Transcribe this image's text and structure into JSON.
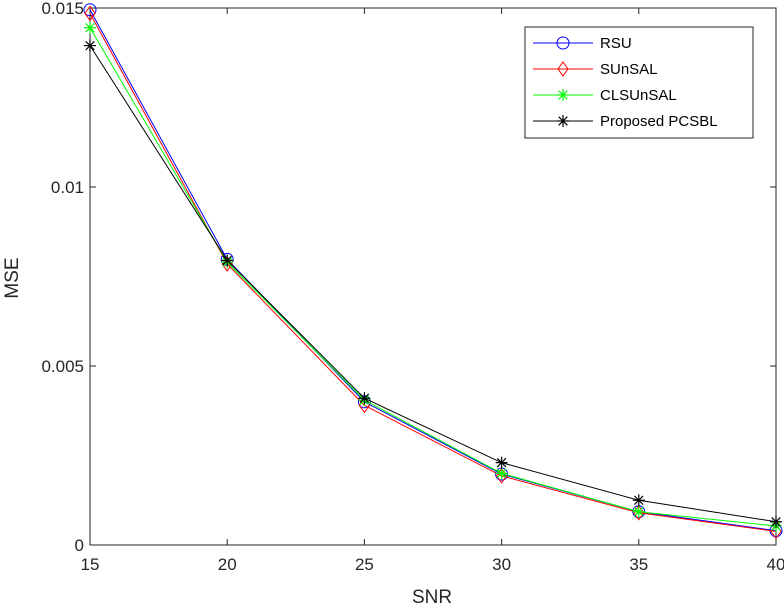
{
  "chart_data": {
    "type": "line",
    "title": "",
    "xlabel": "SNR",
    "ylabel": "MSE",
    "xlim": [
      15,
      40
    ],
    "ylim": [
      0,
      0.015
    ],
    "xticks": [
      15,
      20,
      25,
      30,
      35,
      40
    ],
    "xtick_labels": [
      "15",
      "20",
      "25",
      "30",
      "35",
      "40"
    ],
    "yticks": [
      0,
      0.005,
      0.01,
      0.015
    ],
    "ytick_labels": [
      "0",
      "0.005",
      "0.01",
      "0.015"
    ],
    "grid": false,
    "legend_position": "top-right",
    "x": [
      15,
      20,
      25,
      30,
      35,
      40
    ],
    "series": [
      {
        "name": "RSU",
        "color": "#0000ff",
        "marker": "circle",
        "values": [
          0.01495,
          0.00798,
          0.004,
          0.00198,
          0.00093,
          0.0004
        ]
      },
      {
        "name": "SUnSAL",
        "color": "#ff0000",
        "marker": "diamond",
        "values": [
          0.01485,
          0.00785,
          0.0039,
          0.00193,
          0.0009,
          0.00038
        ]
      },
      {
        "name": "CLSUnSAL",
        "color": "#00ff00",
        "marker": "asterisk",
        "values": [
          0.01445,
          0.0079,
          0.00405,
          0.002,
          0.00093,
          0.00053
        ]
      },
      {
        "name": "Proposed PCSBL",
        "color": "#000000",
        "marker": "asterisk",
        "values": [
          0.01395,
          0.00795,
          0.0041,
          0.0023,
          0.00125,
          0.00065
        ]
      }
    ]
  }
}
